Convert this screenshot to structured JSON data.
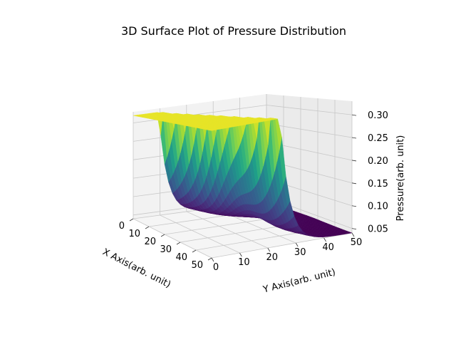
{
  "chart_data": {
    "type": "surface3d",
    "title": "3D Surface Plot of Pressure Distribution",
    "xlabel": "X Axis(arb. unit)",
    "ylabel": "Y Axis(arb. unit)",
    "zlabel": "Pressure(arb. unit)",
    "xlim": [
      0,
      50
    ],
    "ylim": [
      0,
      50
    ],
    "zlim": [
      0.04,
      0.33
    ],
    "x_ticks": [
      "0",
      "10",
      "20",
      "30",
      "40",
      "50"
    ],
    "y_ticks": [
      "0",
      "10",
      "20",
      "30",
      "40",
      "50"
    ],
    "z_ticks": [
      "0.05",
      "0.10",
      "0.15",
      "0.20",
      "0.25",
      "0.30"
    ],
    "x_tick_values": [
      0,
      10,
      20,
      30,
      40,
      50
    ],
    "y_tick_values": [
      0,
      10,
      20,
      30,
      40,
      50
    ],
    "z_tick_values": [
      0.05,
      0.1,
      0.15,
      0.2,
      0.25,
      0.3
    ],
    "grid": true,
    "colormap": "viridis",
    "surface": {
      "x_min": 0,
      "x_max": 50,
      "y_min": 0,
      "y_max": 50,
      "high_value": 0.32,
      "low_value": 0.04,
      "front_step_y": 10,
      "back_step_y": 25,
      "shock_x": 25,
      "low_region_max": 0.12
    }
  }
}
